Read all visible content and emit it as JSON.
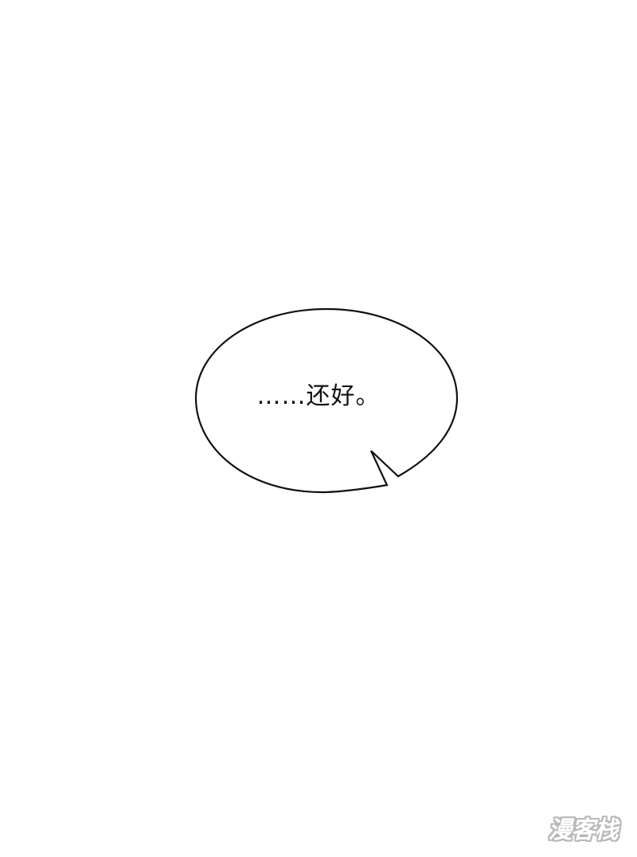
{
  "panel": {
    "background_color": "#ffffff"
  },
  "speech_bubble": {
    "text": "……还好。",
    "fill_color": "#ffffff",
    "stroke_color": "#111111"
  },
  "watermark": {
    "text": "漫客栈"
  }
}
